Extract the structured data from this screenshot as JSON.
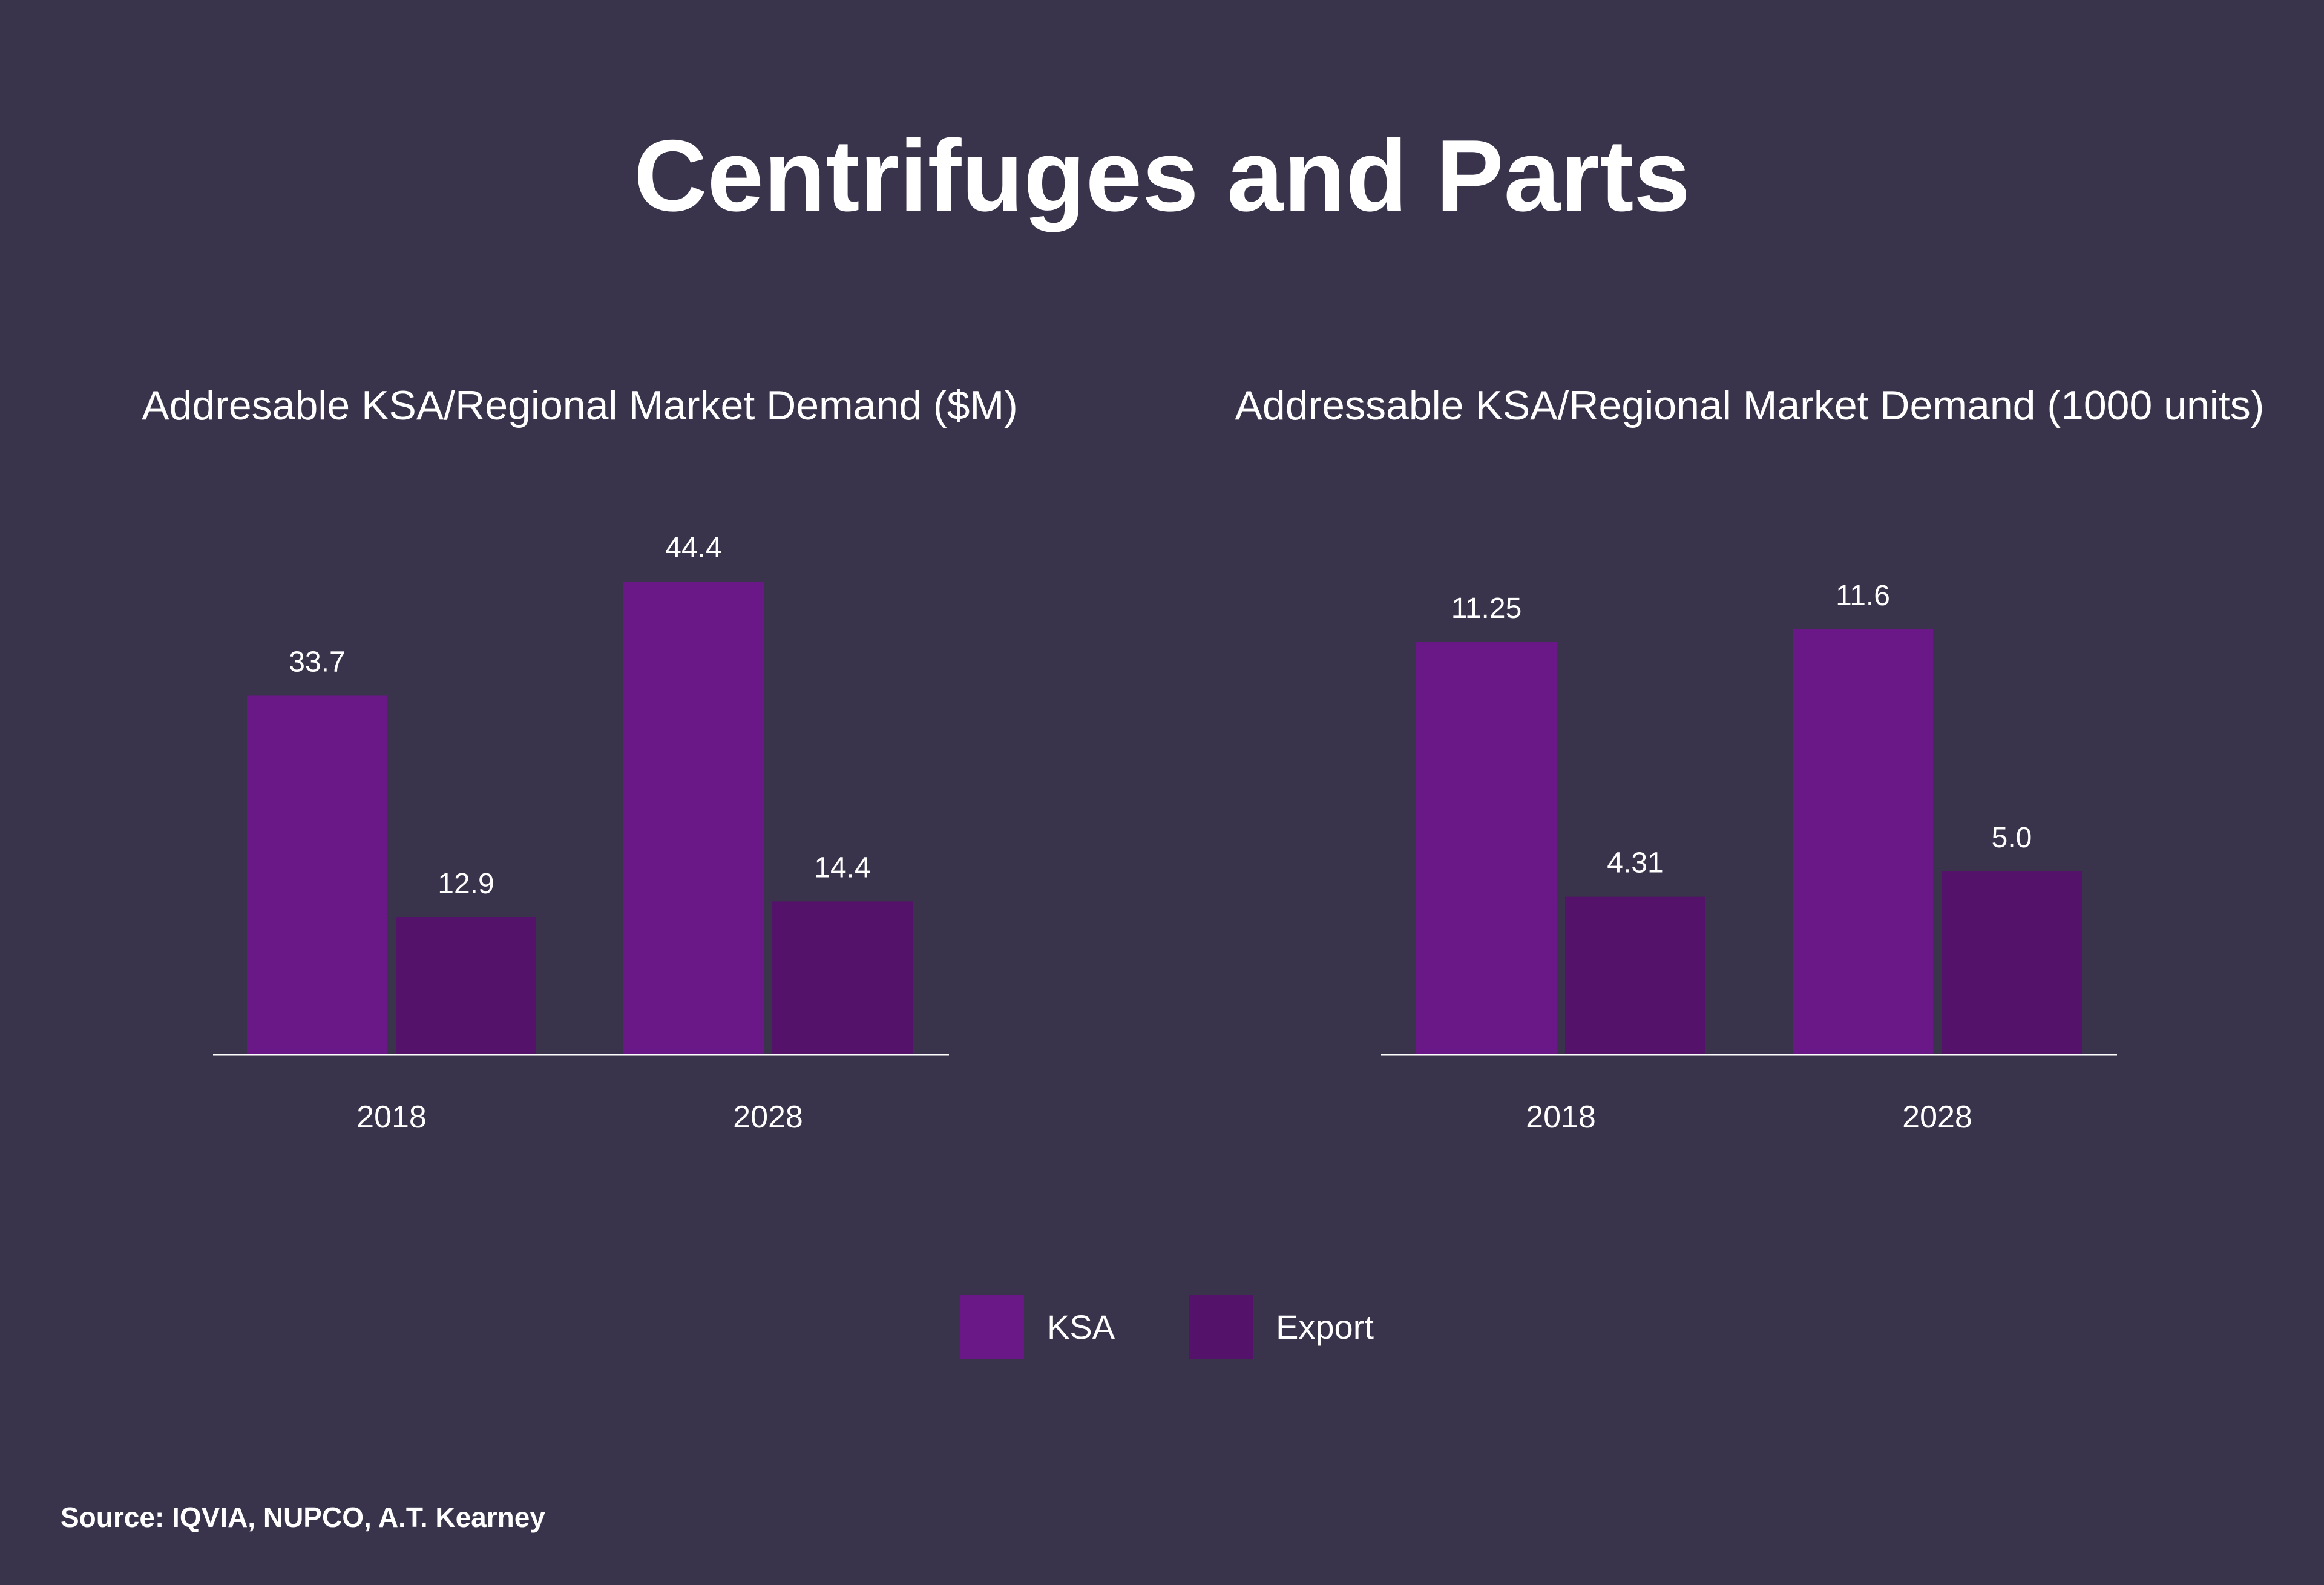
{
  "title": "Centrifuges and Parts",
  "colors": {
    "background": "#39344b",
    "ksa": "#6a1887",
    "export": "#55126b",
    "text": "#ffffff",
    "axis": "#ffffff"
  },
  "legend": {
    "ksa_label": "KSA",
    "export_label": "Export"
  },
  "source": "Source: IQVIA, NUPCO, A.T. Kearney",
  "chart_data": [
    {
      "type": "bar",
      "title": "Addresable KSA/Regional Market Demand ($M)",
      "categories": [
        "2018",
        "2028"
      ],
      "series": [
        {
          "name": "KSA",
          "values": [
            33.7,
            44.4
          ],
          "labels": [
            "33.7",
            "44.4"
          ]
        },
        {
          "name": "Export",
          "values": [
            12.9,
            14.4
          ],
          "labels": [
            "12.9",
            "14.4"
          ]
        }
      ],
      "ylim": [
        0,
        44.4
      ],
      "xlabel": "",
      "ylabel": "",
      "grid": false,
      "legend": "bottom-center"
    },
    {
      "type": "bar",
      "title": "Addressable KSA/Regional Market Demand (1000 units)",
      "categories": [
        "2018",
        "2028"
      ],
      "series": [
        {
          "name": "KSA",
          "values": [
            11.25,
            11.6
          ],
          "labels": [
            "11.25",
            "11.6"
          ]
        },
        {
          "name": "Export",
          "values": [
            4.31,
            5.0
          ],
          "labels": [
            "4.31",
            "5.0"
          ]
        }
      ],
      "ylim": [
        0,
        12.9
      ],
      "xlabel": "",
      "ylabel": "",
      "grid": false,
      "legend": "bottom-center"
    }
  ]
}
